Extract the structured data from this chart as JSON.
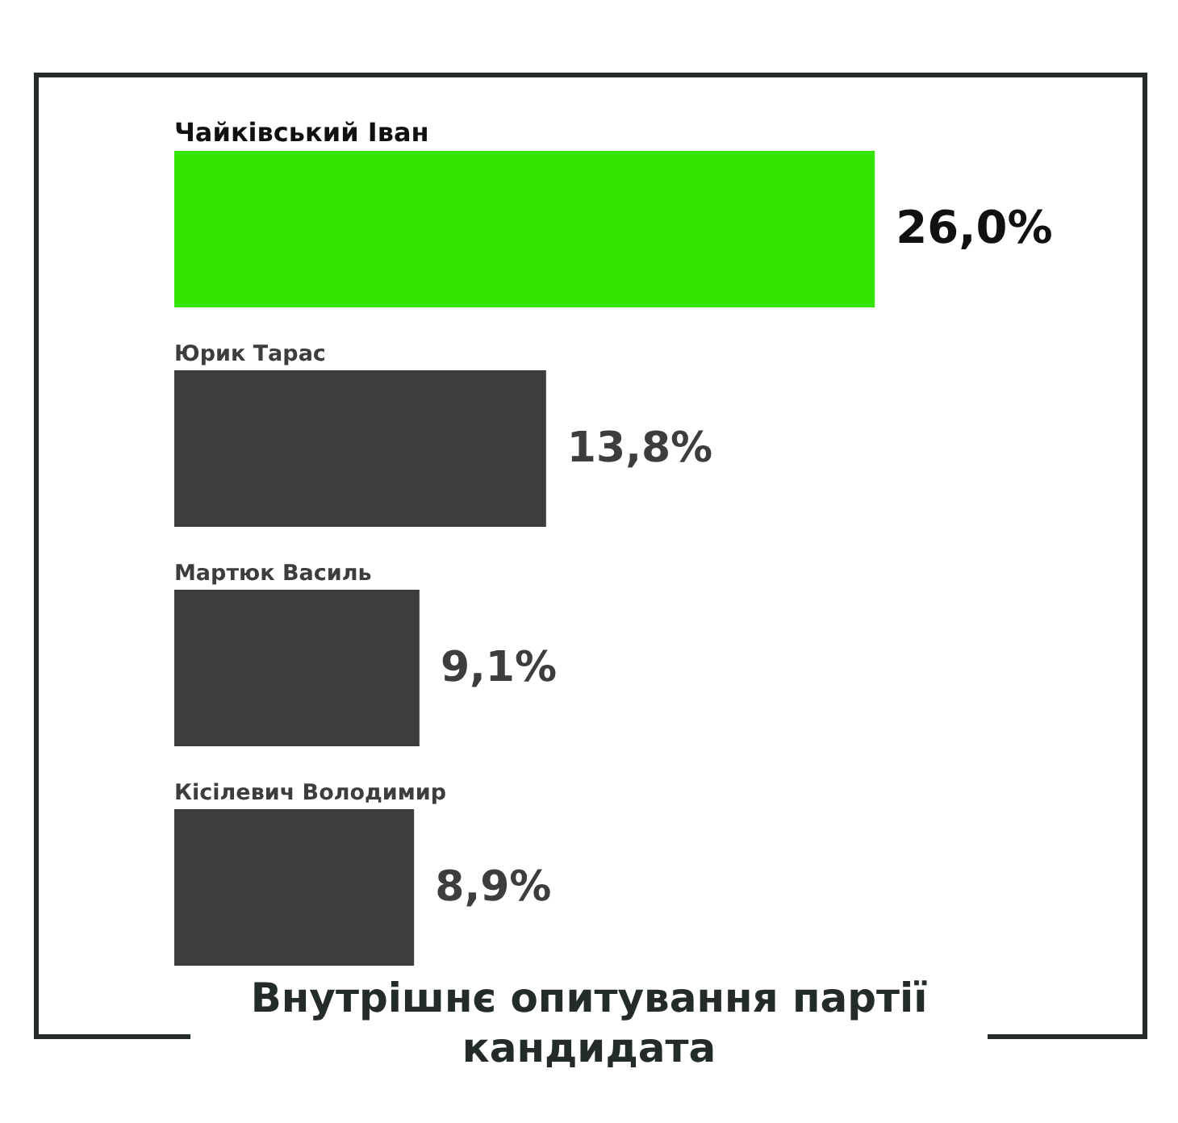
{
  "chart_data": {
    "type": "bar",
    "orientation": "horizontal",
    "title": "Внутрішнє опитування партії кандидата",
    "categories": [
      "Чайківський Іван",
      "Юрик Тарас",
      "Мартюк Василь",
      "Кісілевич Володимир"
    ],
    "values": [
      26.0,
      13.8,
      9.1,
      8.9
    ],
    "colors": [
      "#35e500",
      "#3d3d3d",
      "#3d3d3d",
      "#3d3d3d"
    ],
    "value_labels": [
      "26,0%",
      "13,8%",
      "9,1%",
      "8,9%"
    ],
    "tick_labels": "y"
  }
}
